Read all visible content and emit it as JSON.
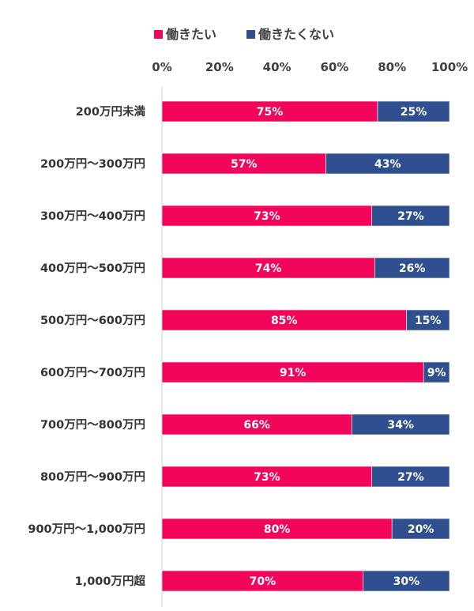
{
  "colors": {
    "want": "#f2065c",
    "not_want": "#2f4f8f",
    "axis": "#d9d9d9",
    "text": "#3f3f3f"
  },
  "chart_data": {
    "type": "bar",
    "orientation": "horizontal",
    "stacked": true,
    "percent": true,
    "xlim": [
      0,
      100
    ],
    "x_ticks": [
      "0%",
      "20%",
      "40%",
      "60%",
      "80%",
      "100%"
    ],
    "legend": {
      "placement": "top"
    },
    "categories": [
      "200万円未満",
      "200万円～300万円",
      "300万円～400万円",
      "400万円～500万円",
      "500万円～600万円",
      "600万円～700万円",
      "700万円～800万円",
      "800万円～900万円",
      "900万円～1,000万円",
      "1,000万円超"
    ],
    "series": [
      {
        "name": "働きたい",
        "values": [
          75,
          57,
          73,
          74,
          85,
          91,
          66,
          73,
          80,
          70
        ],
        "labels": [
          "75%",
          "57%",
          "73%",
          "74%",
          "85%",
          "91%",
          "66%",
          "73%",
          "80%",
          "70%"
        ]
      },
      {
        "name": "働きたくない",
        "values": [
          25,
          43,
          27,
          26,
          15,
          9,
          34,
          27,
          20,
          30
        ],
        "labels": [
          "25%",
          "43%",
          "27%",
          "26%",
          "15%",
          "9%",
          "34%",
          "27%",
          "20%",
          "30%"
        ]
      }
    ]
  }
}
